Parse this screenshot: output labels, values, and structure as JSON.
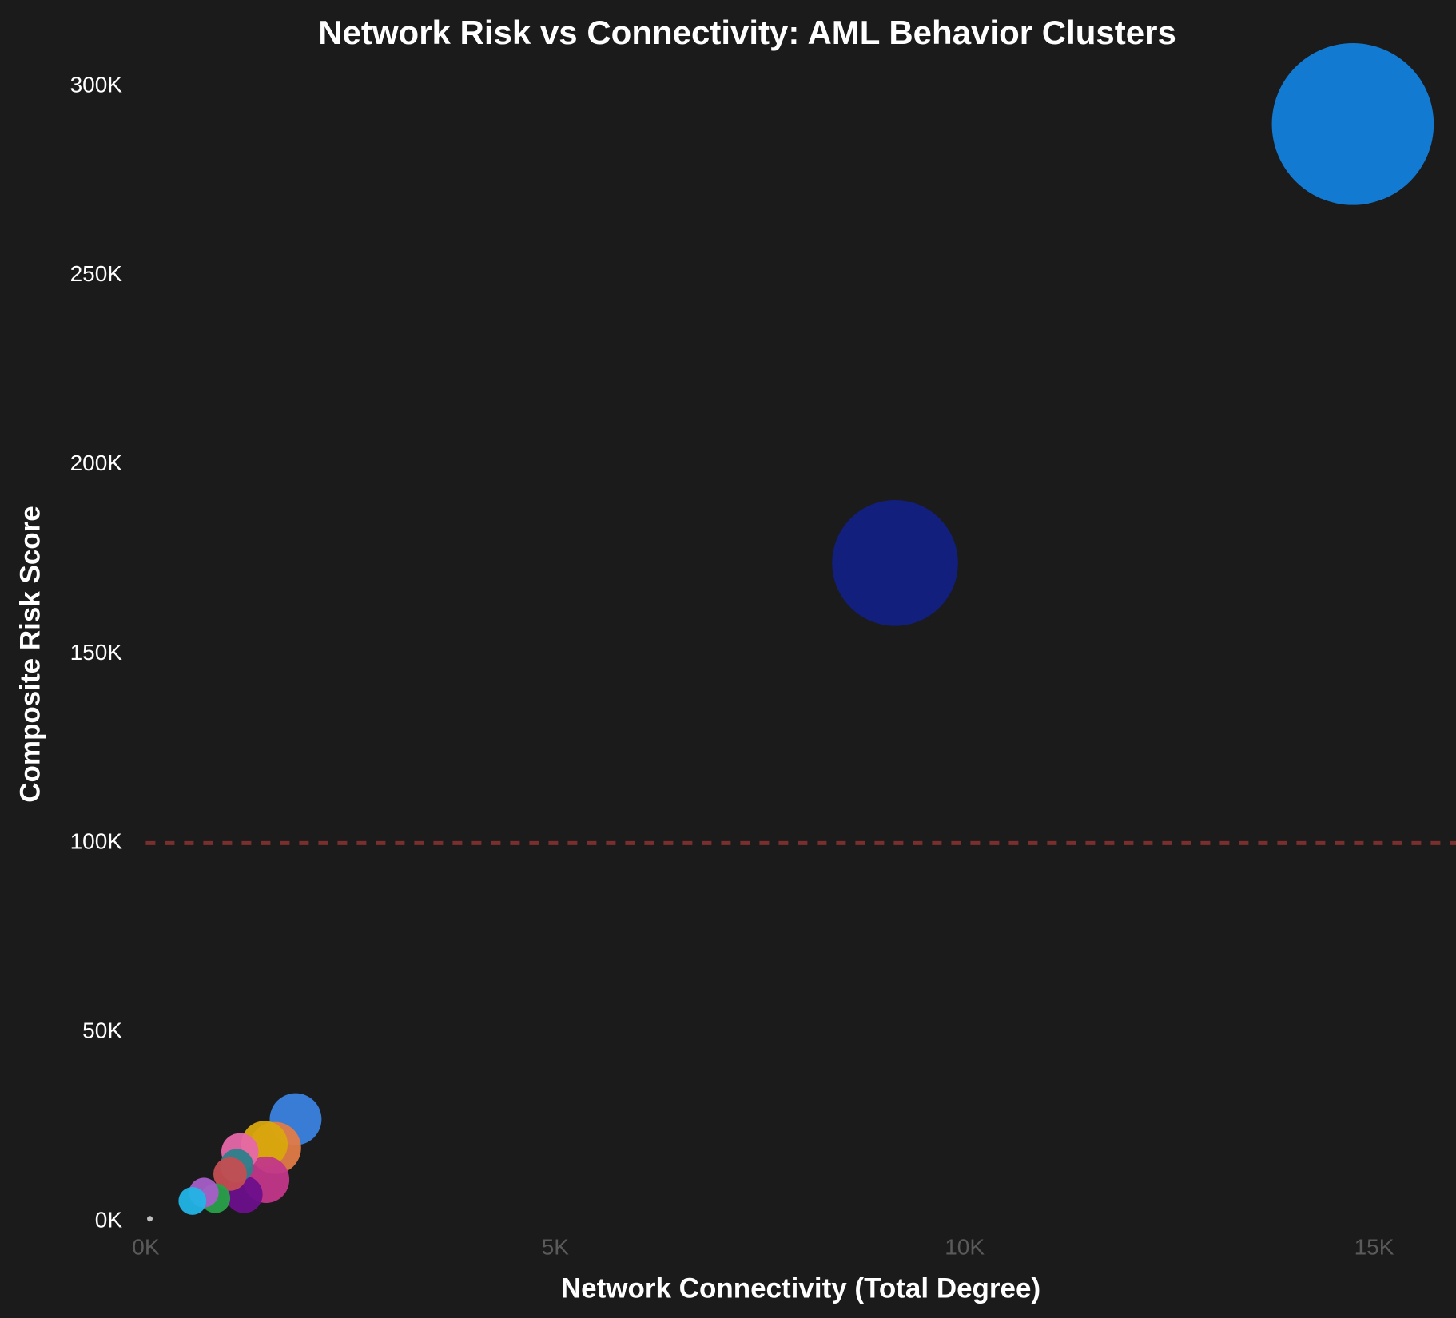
{
  "chart_data": {
    "type": "scatter",
    "title": "Network Risk vs Connectivity: AML Behavior Clusters",
    "x_label": "Network Connectivity (Total Degree)",
    "y_label": "Composite Risk Score",
    "x": [
      14740,
      9150,
      1830,
      1580,
      1450,
      1470,
      1150,
      1200,
      1110,
      1030,
      850,
      710,
      570,
      50
    ],
    "values": [
      290000,
      174000,
      27000,
      19400,
      20400,
      11000,
      18400,
      7100,
      14700,
      12500,
      6100,
      7600,
      5400,
      700
    ],
    "sizes": [
      7600,
      4600,
      780,
      780,
      625,
      625,
      400,
      400,
      325,
      325,
      256,
      256,
      225,
      9
    ],
    "colors": [
      "#1380dc",
      "#122083",
      "#3b82e0",
      "#e07b47",
      "#d9a80d",
      "#c2378a",
      "#e667a9",
      "#6b0f8a",
      "#2c7f8a",
      "#c44e52",
      "#28a04a",
      "#a75ec9",
      "#22b5e6",
      "#c8c8c8"
    ],
    "xlim": [
      0,
      16000
    ],
    "ylim": [
      -2000,
      302000
    ],
    "xticks": [
      {
        "value": 0,
        "label": "0K"
      },
      {
        "value": 5000,
        "label": "5K"
      },
      {
        "value": 10000,
        "label": "10K"
      },
      {
        "value": 15000,
        "label": "15K"
      }
    ],
    "yticks": [
      {
        "value": 0,
        "label": "0K"
      },
      {
        "value": 50000,
        "label": "50K"
      },
      {
        "value": 100000,
        "label": "100K"
      },
      {
        "value": 150000,
        "label": "150K"
      },
      {
        "value": 200000,
        "label": "200K"
      },
      {
        "value": 250000,
        "label": "250K"
      },
      {
        "value": 300000,
        "label": "300K"
      }
    ],
    "reference_line": {
      "value": 100000,
      "color": "#7a2e2e"
    }
  }
}
